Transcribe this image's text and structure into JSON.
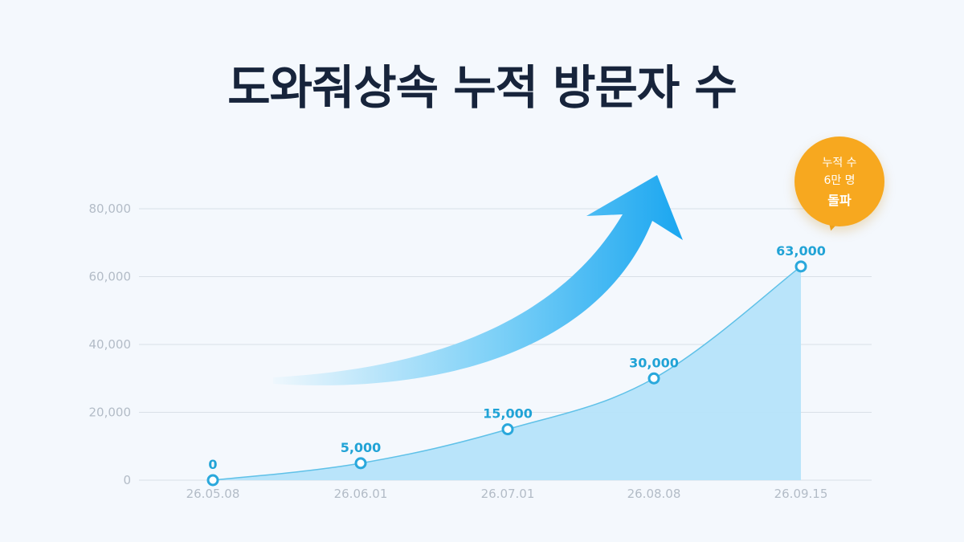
{
  "title": "도와줘상속 누적 방문자 수",
  "badge": {
    "line1": "누적 수",
    "line2": "6만 명",
    "line3": "돌파",
    "color": "#f7a81f"
  },
  "colors": {
    "line": "#5fc1e8",
    "area": "#b5e3fa",
    "marker": "#2aa8dc",
    "arrow_start": "#e6f4fc",
    "arrow_end": "#1aa6f0"
  },
  "chart_data": {
    "type": "area",
    "title": "도와줘상속 누적 방문자 수",
    "x": [
      "26.05.08",
      "26.06.01",
      "26.07.01",
      "26.08.08",
      "26.09.15"
    ],
    "values": [
      0,
      5000,
      15000,
      30000,
      63000
    ],
    "data_labels": [
      "0",
      "5,000",
      "15,000",
      "30,000",
      "63,000"
    ],
    "y_ticks": [
      "0",
      "20,000",
      "40,000",
      "60,000",
      "80,000"
    ],
    "y_tick_values": [
      0,
      20000,
      40000,
      60000,
      80000
    ],
    "ylim": [
      0,
      80000
    ],
    "grid": true,
    "xlabel": "",
    "ylabel": ""
  }
}
